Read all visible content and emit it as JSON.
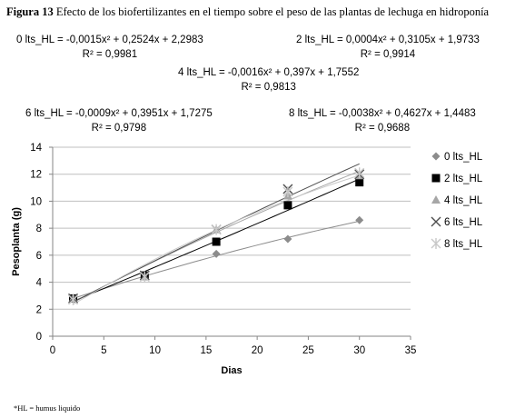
{
  "figure_caption": {
    "label": "Figura 13",
    "text": " Efecto de los biofertilizantes en el tiempo sobre el peso de las plantas de lechuga en hidroponía"
  },
  "footnote": "*HL = humus liquido",
  "equations": [
    {
      "line1": "0 lts_HL = -0,0015x² + 0,2524x + 2,2983",
      "line2": "R² = 0,9981"
    },
    {
      "line1": "2 lts_HL = 0,0004x² + 0,3105x + 1,9733",
      "line2": "R² = 0,9914"
    },
    {
      "line1": "4 lts_HL = -0,0016x² + 0,397x + 1,7552",
      "line2": "R² = 0,9813"
    },
    {
      "line1": "6 lts_HL = -0,0009x² + 0,3951x + 1,7275",
      "line2": "R² = 0,9798"
    },
    {
      "line1": "8 lts_HL = -0,0038x² + 0,4627x + 1,4483",
      "line2": "R² = 0,9688"
    }
  ],
  "chart_data": {
    "type": "scatter",
    "xlabel": "Dias",
    "ylabel": "Pesoplanta (g)",
    "xlim": [
      0,
      35
    ],
    "ylim": [
      0,
      14
    ],
    "xticks": [
      0,
      5,
      10,
      15,
      20,
      25,
      30,
      35
    ],
    "yticks": [
      0,
      2,
      4,
      6,
      8,
      10,
      12,
      14
    ],
    "grid": "horizontal",
    "legend_position": "right",
    "x": [
      2,
      9,
      16,
      23,
      30
    ],
    "series": [
      {
        "name": "0 lts_HL",
        "marker": "diamond",
        "color": "#8c8c8c",
        "values": [
          2.8,
          4.4,
          6.1,
          7.2,
          8.6
        ],
        "trend": [
          -0.0015,
          0.2524,
          2.2983
        ]
      },
      {
        "name": "2 lts_HL",
        "marker": "square",
        "color": "#000000",
        "values": [
          2.8,
          4.5,
          7.0,
          9.7,
          11.4
        ],
        "trend": [
          0.0004,
          0.3105,
          1.9733
        ]
      },
      {
        "name": "4 lts_HL",
        "marker": "triangle",
        "color": "#a6a6a6",
        "values": [
          2.8,
          4.4,
          7.9,
          10.4,
          11.9
        ],
        "trend": [
          -0.0016,
          0.397,
          1.7552
        ]
      },
      {
        "name": "6 lts_HL",
        "marker": "x",
        "color": "#4d4d4d",
        "values": [
          2.8,
          4.5,
          7.9,
          10.9,
          12.0
        ],
        "trend": [
          -0.0009,
          0.3951,
          1.7275
        ]
      },
      {
        "name": "8 lts_HL",
        "marker": "star",
        "color": "#c8c8c8",
        "values": [
          2.7,
          4.4,
          7.9,
          10.7,
          12.1
        ],
        "trend": [
          -0.0038,
          0.4627,
          1.4483
        ]
      }
    ]
  }
}
